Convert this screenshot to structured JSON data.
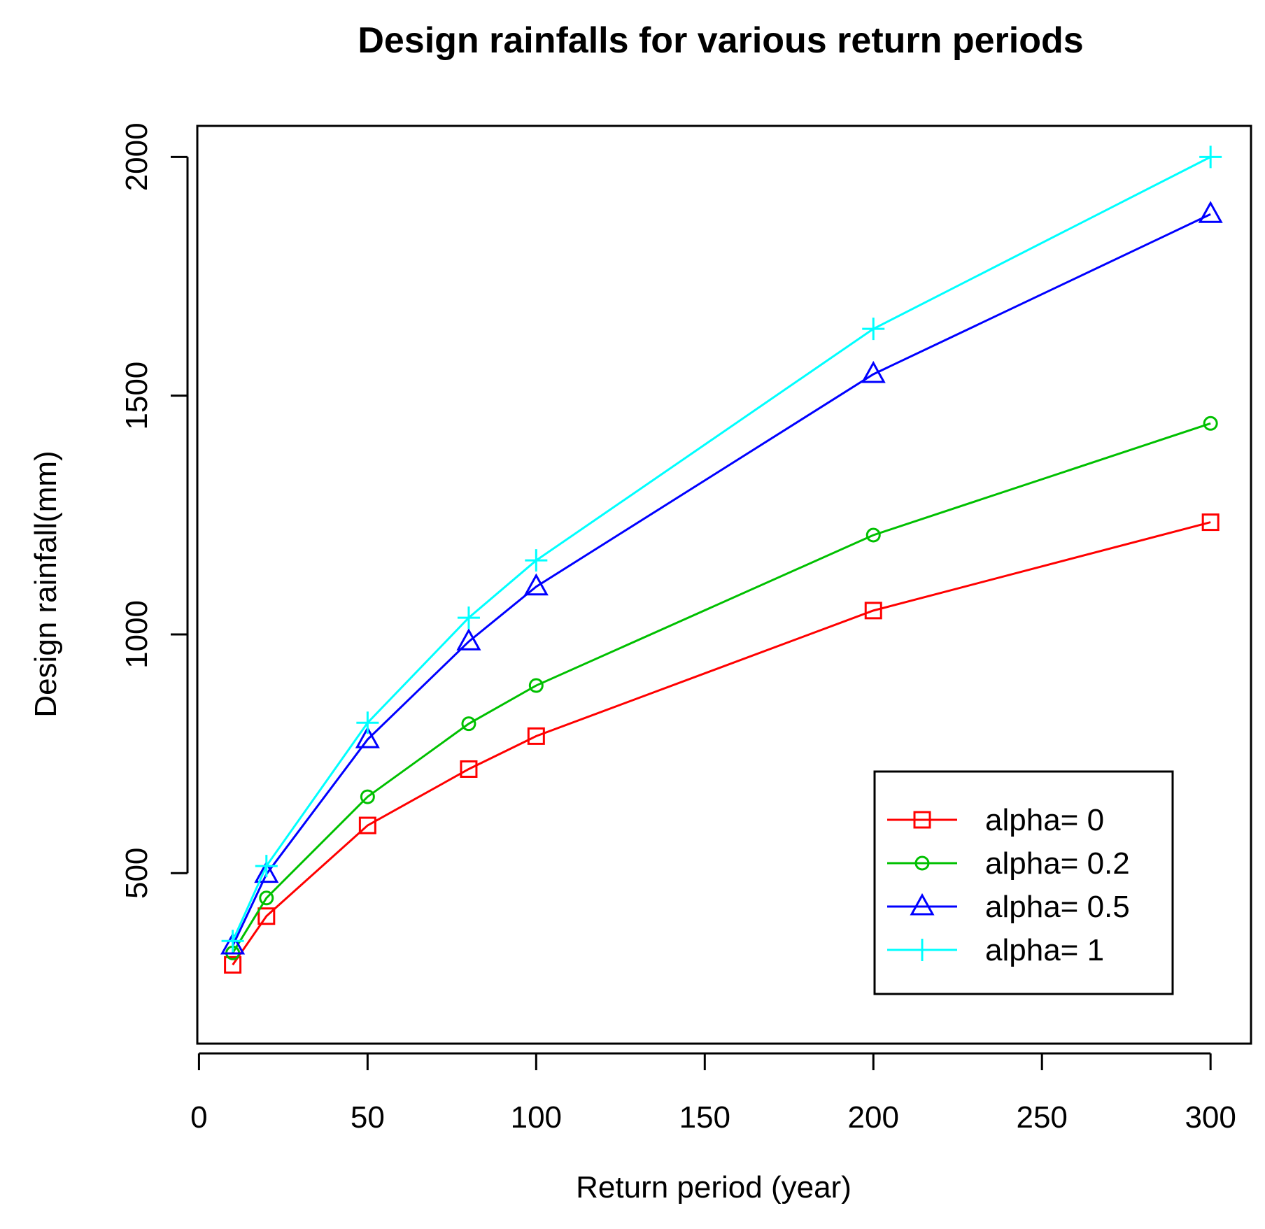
{
  "chart_data": {
    "type": "line",
    "title": "Design rainfalls for various return periods",
    "xlabel": "Return period (year)",
    "ylabel": "Design rainfall(mm)",
    "xlim": [
      -0.5,
      312
    ],
    "ylim": [
      143,
      2065
    ],
    "xticks": [
      0,
      50,
      100,
      150,
      200,
      250,
      300
    ],
    "yticks": [
      500,
      1000,
      1500,
      2000
    ],
    "x": [
      10,
      20,
      50,
      80,
      100,
      200,
      300
    ],
    "series": [
      {
        "name": "alpha= 0",
        "color": "#ff0000",
        "marker": "square",
        "values": [
          308,
          410,
          600,
          718,
          787,
          1050,
          1235
        ]
      },
      {
        "name": "alpha= 0.2",
        "color": "#00c000",
        "marker": "circle",
        "values": [
          333,
          448,
          660,
          813,
          893,
          1208,
          1442
        ]
      },
      {
        "name": "alpha= 0.5",
        "color": "#0000ff",
        "marker": "triangle",
        "values": [
          348,
          498,
          780,
          985,
          1100,
          1545,
          1880
        ]
      },
      {
        "name": "alpha= 1",
        "color": "#00ffff",
        "marker": "plus",
        "values": [
          358,
          515,
          815,
          1035,
          1155,
          1640,
          2000
        ]
      }
    ],
    "legend_position": "bottom-right",
    "grid": false
  }
}
